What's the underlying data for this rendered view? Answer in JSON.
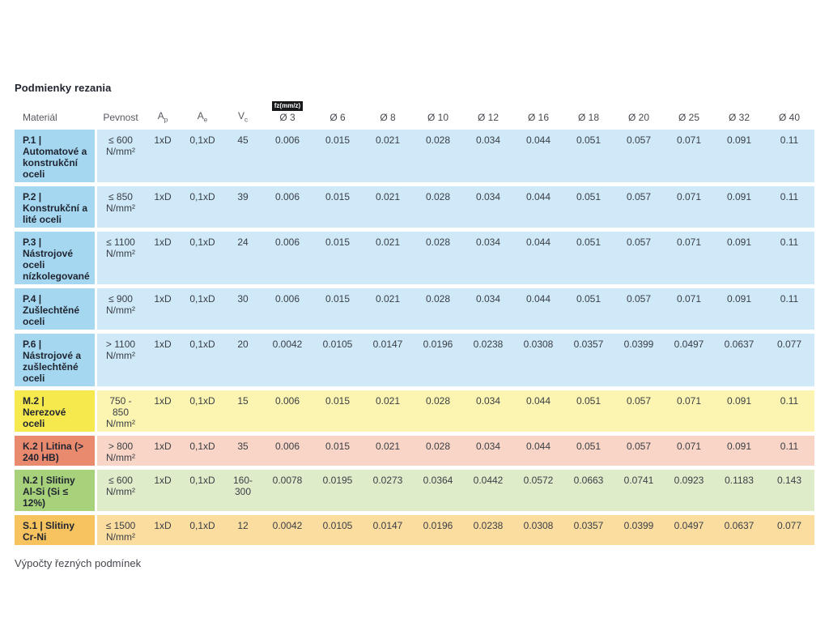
{
  "page": {
    "title": "Podmienky rezania",
    "footer_text": "Výpočty řezných podmínek"
  },
  "table": {
    "headers": {
      "material": "Materiál",
      "pevnost": "Pevnost",
      "ap_base": "A",
      "ap_sub": "p",
      "ae_base": "A",
      "ae_sub": "e",
      "vc_base": "V",
      "vc_sub": "c",
      "fz_badge": "fz(mm/z)",
      "diameters": [
        "Ø 3",
        "Ø 6",
        "Ø 8",
        "Ø 10",
        "Ø 12",
        "Ø 16",
        "Ø 18",
        "Ø 20",
        "Ø 25",
        "Ø 32",
        "Ø 40"
      ]
    },
    "palettes": {
      "blue": {
        "head": "#a5d8f0",
        "body": "#cfe9f8"
      },
      "yellow": {
        "head": "#f5e94e",
        "body": "#fbf5b1"
      },
      "salmon": {
        "head": "#e98a6e",
        "body": "#f8d5c6"
      },
      "green": {
        "head": "#a7d17a",
        "body": "#dfecca"
      },
      "orange": {
        "head": "#f6c35f",
        "body": "#fbdda0"
      }
    },
    "rows": [
      {
        "material": "P.1 | Automatové a konstrukční oceli",
        "pevnost": "≤ 600 N/mm²",
        "ap": "1xD",
        "ae": "0,1xD",
        "vc": "45",
        "fz": [
          "0.006",
          "0.015",
          "0.021",
          "0.028",
          "0.034",
          "0.044",
          "0.051",
          "0.057",
          "0.071",
          "0.091",
          "0.11"
        ],
        "palette": "blue"
      },
      {
        "material": "P.2 | Konstrukční a lité oceli",
        "pevnost": "≤ 850 N/mm²",
        "ap": "1xD",
        "ae": "0,1xD",
        "vc": "39",
        "fz": [
          "0.006",
          "0.015",
          "0.021",
          "0.028",
          "0.034",
          "0.044",
          "0.051",
          "0.057",
          "0.071",
          "0.091",
          "0.11"
        ],
        "palette": "blue"
      },
      {
        "material": "P.3 | Nástrojové oceli nízkolegované",
        "pevnost": "≤ 1100 N/mm²",
        "ap": "1xD",
        "ae": "0,1xD",
        "vc": "24",
        "fz": [
          "0.006",
          "0.015",
          "0.021",
          "0.028",
          "0.034",
          "0.044",
          "0.051",
          "0.057",
          "0.071",
          "0.091",
          "0.11"
        ],
        "palette": "blue"
      },
      {
        "material": "P.4 | Zušlechtěné oceli",
        "pevnost": "≤ 900 N/mm²",
        "ap": "1xD",
        "ae": "0,1xD",
        "vc": "30",
        "fz": [
          "0.006",
          "0.015",
          "0.021",
          "0.028",
          "0.034",
          "0.044",
          "0.051",
          "0.057",
          "0.071",
          "0.091",
          "0.11"
        ],
        "palette": "blue"
      },
      {
        "material": "P.6 | Nástrojové a zušlechtěné oceli",
        "pevnost": "> 1100 N/mm²",
        "ap": "1xD",
        "ae": "0,1xD",
        "vc": "20",
        "fz": [
          "0.0042",
          "0.0105",
          "0.0147",
          "0.0196",
          "0.0238",
          "0.0308",
          "0.0357",
          "0.0399",
          "0.0497",
          "0.0637",
          "0.077"
        ],
        "palette": "blue"
      },
      {
        "material": "M.2 | Nerezové oceli",
        "pevnost": "750 - 850 N/mm²",
        "ap": "1xD",
        "ae": "0,1xD",
        "vc": "15",
        "fz": [
          "0.006",
          "0.015",
          "0.021",
          "0.028",
          "0.034",
          "0.044",
          "0.051",
          "0.057",
          "0.071",
          "0.091",
          "0.11"
        ],
        "palette": "yellow"
      },
      {
        "material": "K.2 | Litina (> 240 HB)",
        "pevnost": "> 800 N/mm²",
        "ap": "1xD",
        "ae": "0,1xD",
        "vc": "35",
        "fz": [
          "0.006",
          "0.015",
          "0.021",
          "0.028",
          "0.034",
          "0.044",
          "0.051",
          "0.057",
          "0.071",
          "0.091",
          "0.11"
        ],
        "palette": "salmon"
      },
      {
        "material": "N.2 | Slitiny Al-Si (Si ≤ 12%)",
        "pevnost": "≤ 600 N/mm²",
        "ap": "1xD",
        "ae": "0,1xD",
        "vc": "160-300",
        "fz": [
          "0.0078",
          "0.0195",
          "0.0273",
          "0.0364",
          "0.0442",
          "0.0572",
          "0.0663",
          "0.0741",
          "0.0923",
          "0.1183",
          "0.143"
        ],
        "palette": "green"
      },
      {
        "material": "S.1 | Slitiny Cr-Ni",
        "pevnost": "≤ 1500 N/mm²",
        "ap": "1xD",
        "ae": "0,1xD",
        "vc": "12",
        "fz": [
          "0.0042",
          "0.0105",
          "0.0147",
          "0.0196",
          "0.0238",
          "0.0308",
          "0.0357",
          "0.0399",
          "0.0497",
          "0.0637",
          "0.077"
        ],
        "palette": "orange"
      }
    ]
  }
}
